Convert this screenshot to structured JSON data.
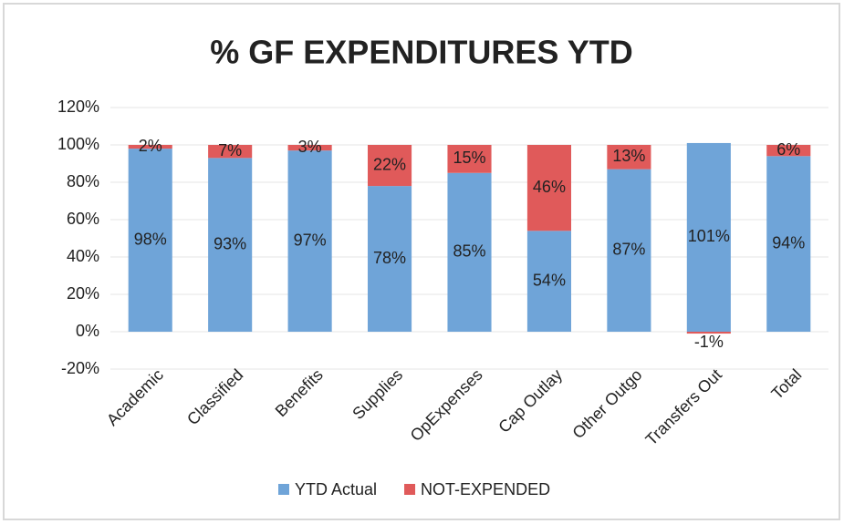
{
  "chart_data": {
    "type": "stacked_bar",
    "title": "% GF EXPENDITURES YTD",
    "categories": [
      "Academic",
      "Classified",
      "Benefits",
      "Supplies",
      "OpExpenses",
      "Cap Outlay",
      "Other Outgo",
      "Transfers Out",
      "Total"
    ],
    "series": [
      {
        "name": "YTD Actual",
        "color": "#6fa4d8",
        "values": [
          98,
          93,
          97,
          78,
          85,
          54,
          87,
          101,
          94
        ],
        "value_labels": [
          "98%",
          "93%",
          "97%",
          "78%",
          "85%",
          "54%",
          "87%",
          "101%",
          "94%"
        ]
      },
      {
        "name": "NOT-EXPENDED",
        "color": "#e05a5a",
        "values": [
          2,
          7,
          3,
          22,
          15,
          46,
          13,
          -1,
          6
        ],
        "value_labels": [
          "2%",
          "7%",
          "3%",
          "22%",
          "15%",
          "46%",
          "13%",
          "-1%",
          "6%"
        ]
      }
    ],
    "ylim": [
      -20,
      120
    ],
    "yticks": [
      {
        "value": -20,
        "label": "-20%"
      },
      {
        "value": 0,
        "label": "0%"
      },
      {
        "value": 20,
        "label": "20%"
      },
      {
        "value": 40,
        "label": "40%"
      },
      {
        "value": 60,
        "label": "60%"
      },
      {
        "value": 80,
        "label": "80%"
      },
      {
        "value": 100,
        "label": "100%"
      },
      {
        "value": 120,
        "label": "120%"
      }
    ],
    "grid": true,
    "legend": "bottom"
  }
}
